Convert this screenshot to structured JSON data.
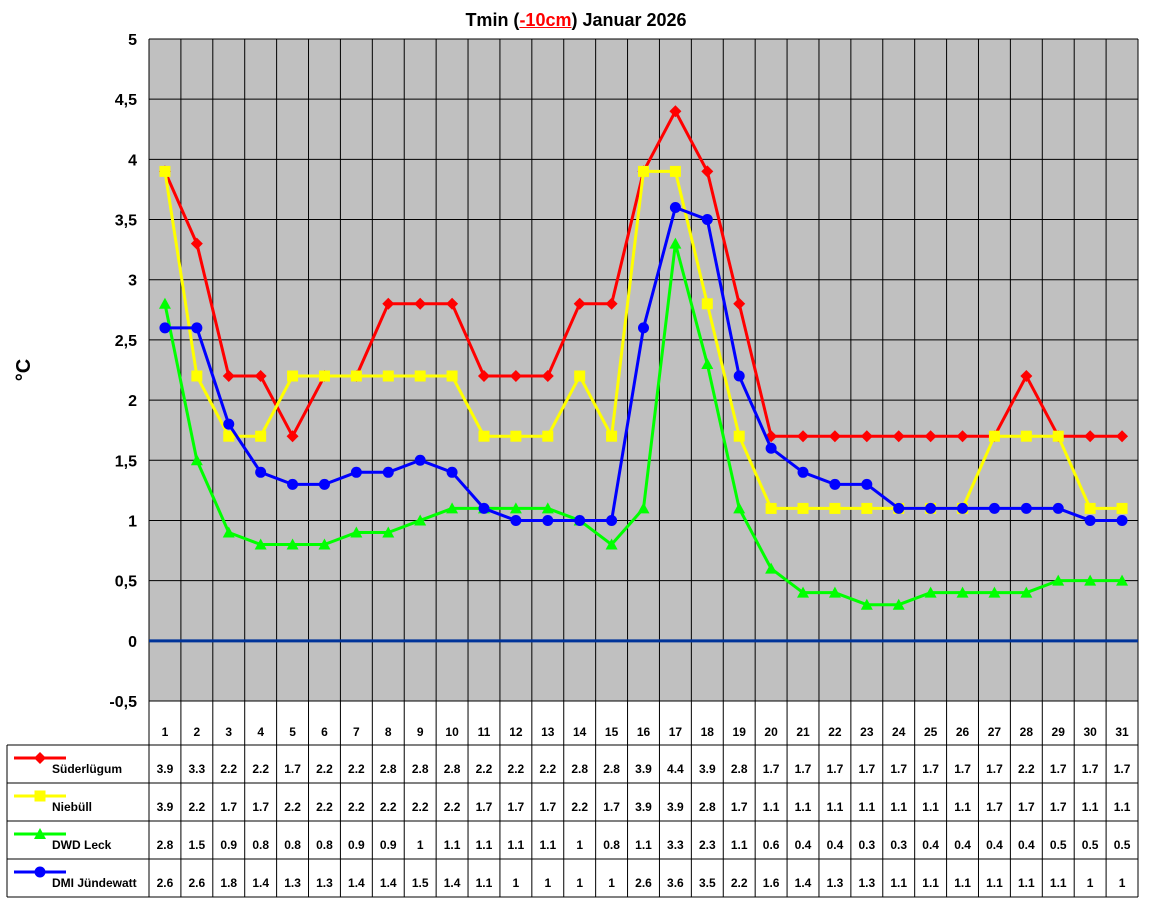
{
  "chart_data": {
    "type": "line",
    "title": {
      "prefix": "Tmin (",
      "highlight": "-10cm",
      "suffix": ") Januar 2026"
    },
    "ylabel": "°C",
    "ylim": [
      -0.5,
      5
    ],
    "yticks": [
      "-0,5",
      "0",
      "0,5",
      "1",
      "1,5",
      "2",
      "2,5",
      "3",
      "3,5",
      "4",
      "4,5",
      "5"
    ],
    "categories": [
      "1",
      "2",
      "3",
      "4",
      "5",
      "6",
      "7",
      "8",
      "9",
      "10",
      "11",
      "12",
      "13",
      "14",
      "15",
      "16",
      "17",
      "18",
      "19",
      "20",
      "21",
      "22",
      "23",
      "24",
      "25",
      "26",
      "27",
      "28",
      "29",
      "30",
      "31"
    ],
    "grid": true,
    "plot_background": "#c0c0c0",
    "zero_line_color": "#003399",
    "legend_placement": "data-table-below",
    "series": [
      {
        "name": "Süderlügum",
        "color": "#ff0000",
        "marker": "diamond",
        "values": [
          3.9,
          3.3,
          2.2,
          2.2,
          1.7,
          2.2,
          2.2,
          2.8,
          2.8,
          2.8,
          2.2,
          2.2,
          2.2,
          2.8,
          2.8,
          3.9,
          4.4,
          3.9,
          2.8,
          1.7,
          1.7,
          1.7,
          1.7,
          1.7,
          1.7,
          1.7,
          1.7,
          2.2,
          1.7,
          1.7,
          1.7
        ]
      },
      {
        "name": "Niebüll",
        "color": "#ffff00",
        "marker": "square",
        "values": [
          3.9,
          2.2,
          1.7,
          1.7,
          2.2,
          2.2,
          2.2,
          2.2,
          2.2,
          2.2,
          1.7,
          1.7,
          1.7,
          2.2,
          1.7,
          3.9,
          3.9,
          2.8,
          1.7,
          1.1,
          1.1,
          1.1,
          1.1,
          1.1,
          1.1,
          1.1,
          1.7,
          1.7,
          1.7,
          1.1,
          1.1
        ]
      },
      {
        "name": "DWD Leck",
        "color": "#00ff00",
        "marker": "triangle",
        "values": [
          2.8,
          1.5,
          0.9,
          0.8,
          0.8,
          0.8,
          0.9,
          0.9,
          1,
          1.1,
          1.1,
          1.1,
          1.1,
          1,
          0.8,
          1.1,
          3.3,
          2.3,
          1.1,
          0.6,
          0.4,
          0.4,
          0.3,
          0.3,
          0.4,
          0.4,
          0.4,
          0.4,
          0.5,
          0.5,
          0.5
        ]
      },
      {
        "name": "DMI Jündewatt",
        "color": "#0000ff",
        "marker": "circle",
        "values": [
          2.6,
          2.6,
          1.8,
          1.4,
          1.3,
          1.3,
          1.4,
          1.4,
          1.5,
          1.4,
          1.1,
          1,
          1,
          1,
          1,
          2.6,
          3.6,
          3.5,
          2.2,
          1.6,
          1.4,
          1.3,
          1.3,
          1.1,
          1.1,
          1.1,
          1.1,
          1.1,
          1.1,
          1,
          1
        ]
      }
    ]
  }
}
